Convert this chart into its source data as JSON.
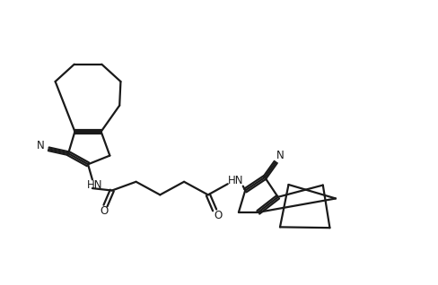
{
  "background_color": "#ffffff",
  "line_color": "#1a1a1a",
  "line_width": 1.6,
  "fig_width": 4.88,
  "fig_height": 3.18,
  "dpi": 100,
  "xlim": [
    0,
    100
  ],
  "ylim": [
    0,
    65
  ]
}
